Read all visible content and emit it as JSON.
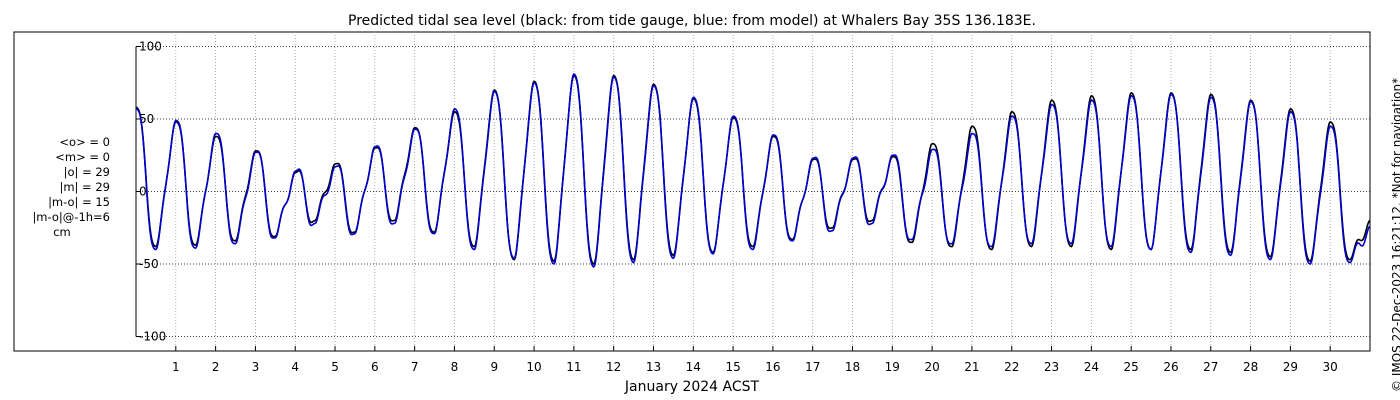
{
  "chart_data": {
    "type": "line",
    "title": "Predicted tidal sea level (black: from tide gauge, blue: from model) at Whalers Bay 35S 136.183E.",
    "xlabel": "January 2024 ACST",
    "ylabel": "",
    "ylim": [
      -110,
      110
    ],
    "xlim": [
      0,
      31
    ],
    "yticks": [
      100,
      50,
      0,
      -50,
      -100
    ],
    "xticks": [
      1,
      2,
      3,
      4,
      5,
      6,
      7,
      8,
      9,
      10,
      11,
      12,
      13,
      14,
      15,
      16,
      17,
      18,
      19,
      20,
      21,
      22,
      23,
      24,
      25,
      26,
      27,
      28,
      29,
      30
    ],
    "grid": true,
    "series": [
      {
        "name": "from tide gauge",
        "color": "#000000",
        "x": [
          0.0,
          0.5,
          1.0,
          1.5,
          2.0,
          2.5,
          3.0,
          3.5,
          4.0,
          4.5,
          5.0,
          5.5,
          6.0,
          6.5,
          7.0,
          7.5,
          8.0,
          8.5,
          9.0,
          9.5,
          10.0,
          10.5,
          11.0,
          11.5,
          12.0,
          12.5,
          13.0,
          13.5,
          14.0,
          14.5,
          15.0,
          15.5,
          16.0,
          16.5,
          17.0,
          17.5,
          18.0,
          18.5,
          19.0,
          19.5,
          20.0,
          20.5,
          21.0,
          21.5,
          22.0,
          22.5,
          23.0,
          23.5,
          24.0,
          24.5,
          25.0,
          25.5,
          26.0,
          26.5,
          27.0,
          27.5,
          28.0,
          28.5,
          29.0,
          29.5,
          30.0,
          30.5,
          31.0
        ],
        "y": [
          58,
          -38,
          48,
          -37,
          38,
          -34,
          28,
          -31,
          13,
          -20,
          19,
          -28,
          30,
          -20,
          44,
          -28,
          55,
          -38,
          70,
          -47,
          76,
          -48,
          80,
          -50,
          80,
          -47,
          74,
          -44,
          64,
          -42,
          51,
          -38,
          38,
          -33,
          22,
          -25,
          22,
          -20,
          24,
          -35,
          33,
          -38,
          45,
          -40,
          55,
          -38,
          63,
          -38,
          66,
          -40,
          68,
          -40,
          68,
          -40,
          67,
          -42,
          63,
          -45,
          57,
          -48,
          48,
          -47,
          -20
        ]
      },
      {
        "name": "from model",
        "color": "#0000cc",
        "x": [
          0.0,
          0.5,
          1.0,
          1.5,
          2.0,
          2.5,
          3.0,
          3.5,
          4.0,
          4.5,
          5.0,
          5.5,
          6.0,
          6.5,
          7.0,
          7.5,
          8.0,
          8.5,
          9.0,
          9.5,
          10.0,
          10.5,
          11.0,
          11.5,
          12.0,
          12.5,
          13.0,
          13.5,
          14.0,
          14.5,
          15.0,
          15.5,
          16.0,
          16.5,
          17.0,
          17.5,
          18.0,
          18.5,
          19.0,
          19.5,
          20.0,
          20.5,
          21.0,
          21.5,
          22.0,
          22.5,
          23.0,
          23.5,
          24.0,
          24.5,
          25.0,
          25.5,
          26.0,
          26.5,
          27.0,
          27.5,
          28.0,
          28.5,
          29.0,
          29.5,
          30.0,
          30.5,
          31.0
        ],
        "y": [
          57,
          -40,
          49,
          -39,
          40,
          -36,
          27,
          -32,
          14,
          -22,
          17,
          -29,
          31,
          -22,
          43,
          -29,
          57,
          -40,
          69,
          -46,
          75,
          -50,
          81,
          -52,
          79,
          -49,
          73,
          -46,
          65,
          -43,
          52,
          -40,
          39,
          -34,
          23,
          -27,
          23,
          -22,
          25,
          -33,
          29,
          -36,
          40,
          -38,
          52,
          -36,
          60,
          -36,
          63,
          -38,
          66,
          -40,
          67,
          -42,
          65,
          -44,
          62,
          -47,
          55,
          -50,
          45,
          -49,
          -24
        ]
      }
    ],
    "stats": [
      "<o> = 0",
      "<m> = 0",
      "|o| = 29",
      "|m| = 29",
      "|m-o| = 15",
      "|m-o|@-1h=6",
      "cm"
    ],
    "credit": "© IMOS 22-Dec-2023 16:21:12. *Not for navigation*"
  }
}
